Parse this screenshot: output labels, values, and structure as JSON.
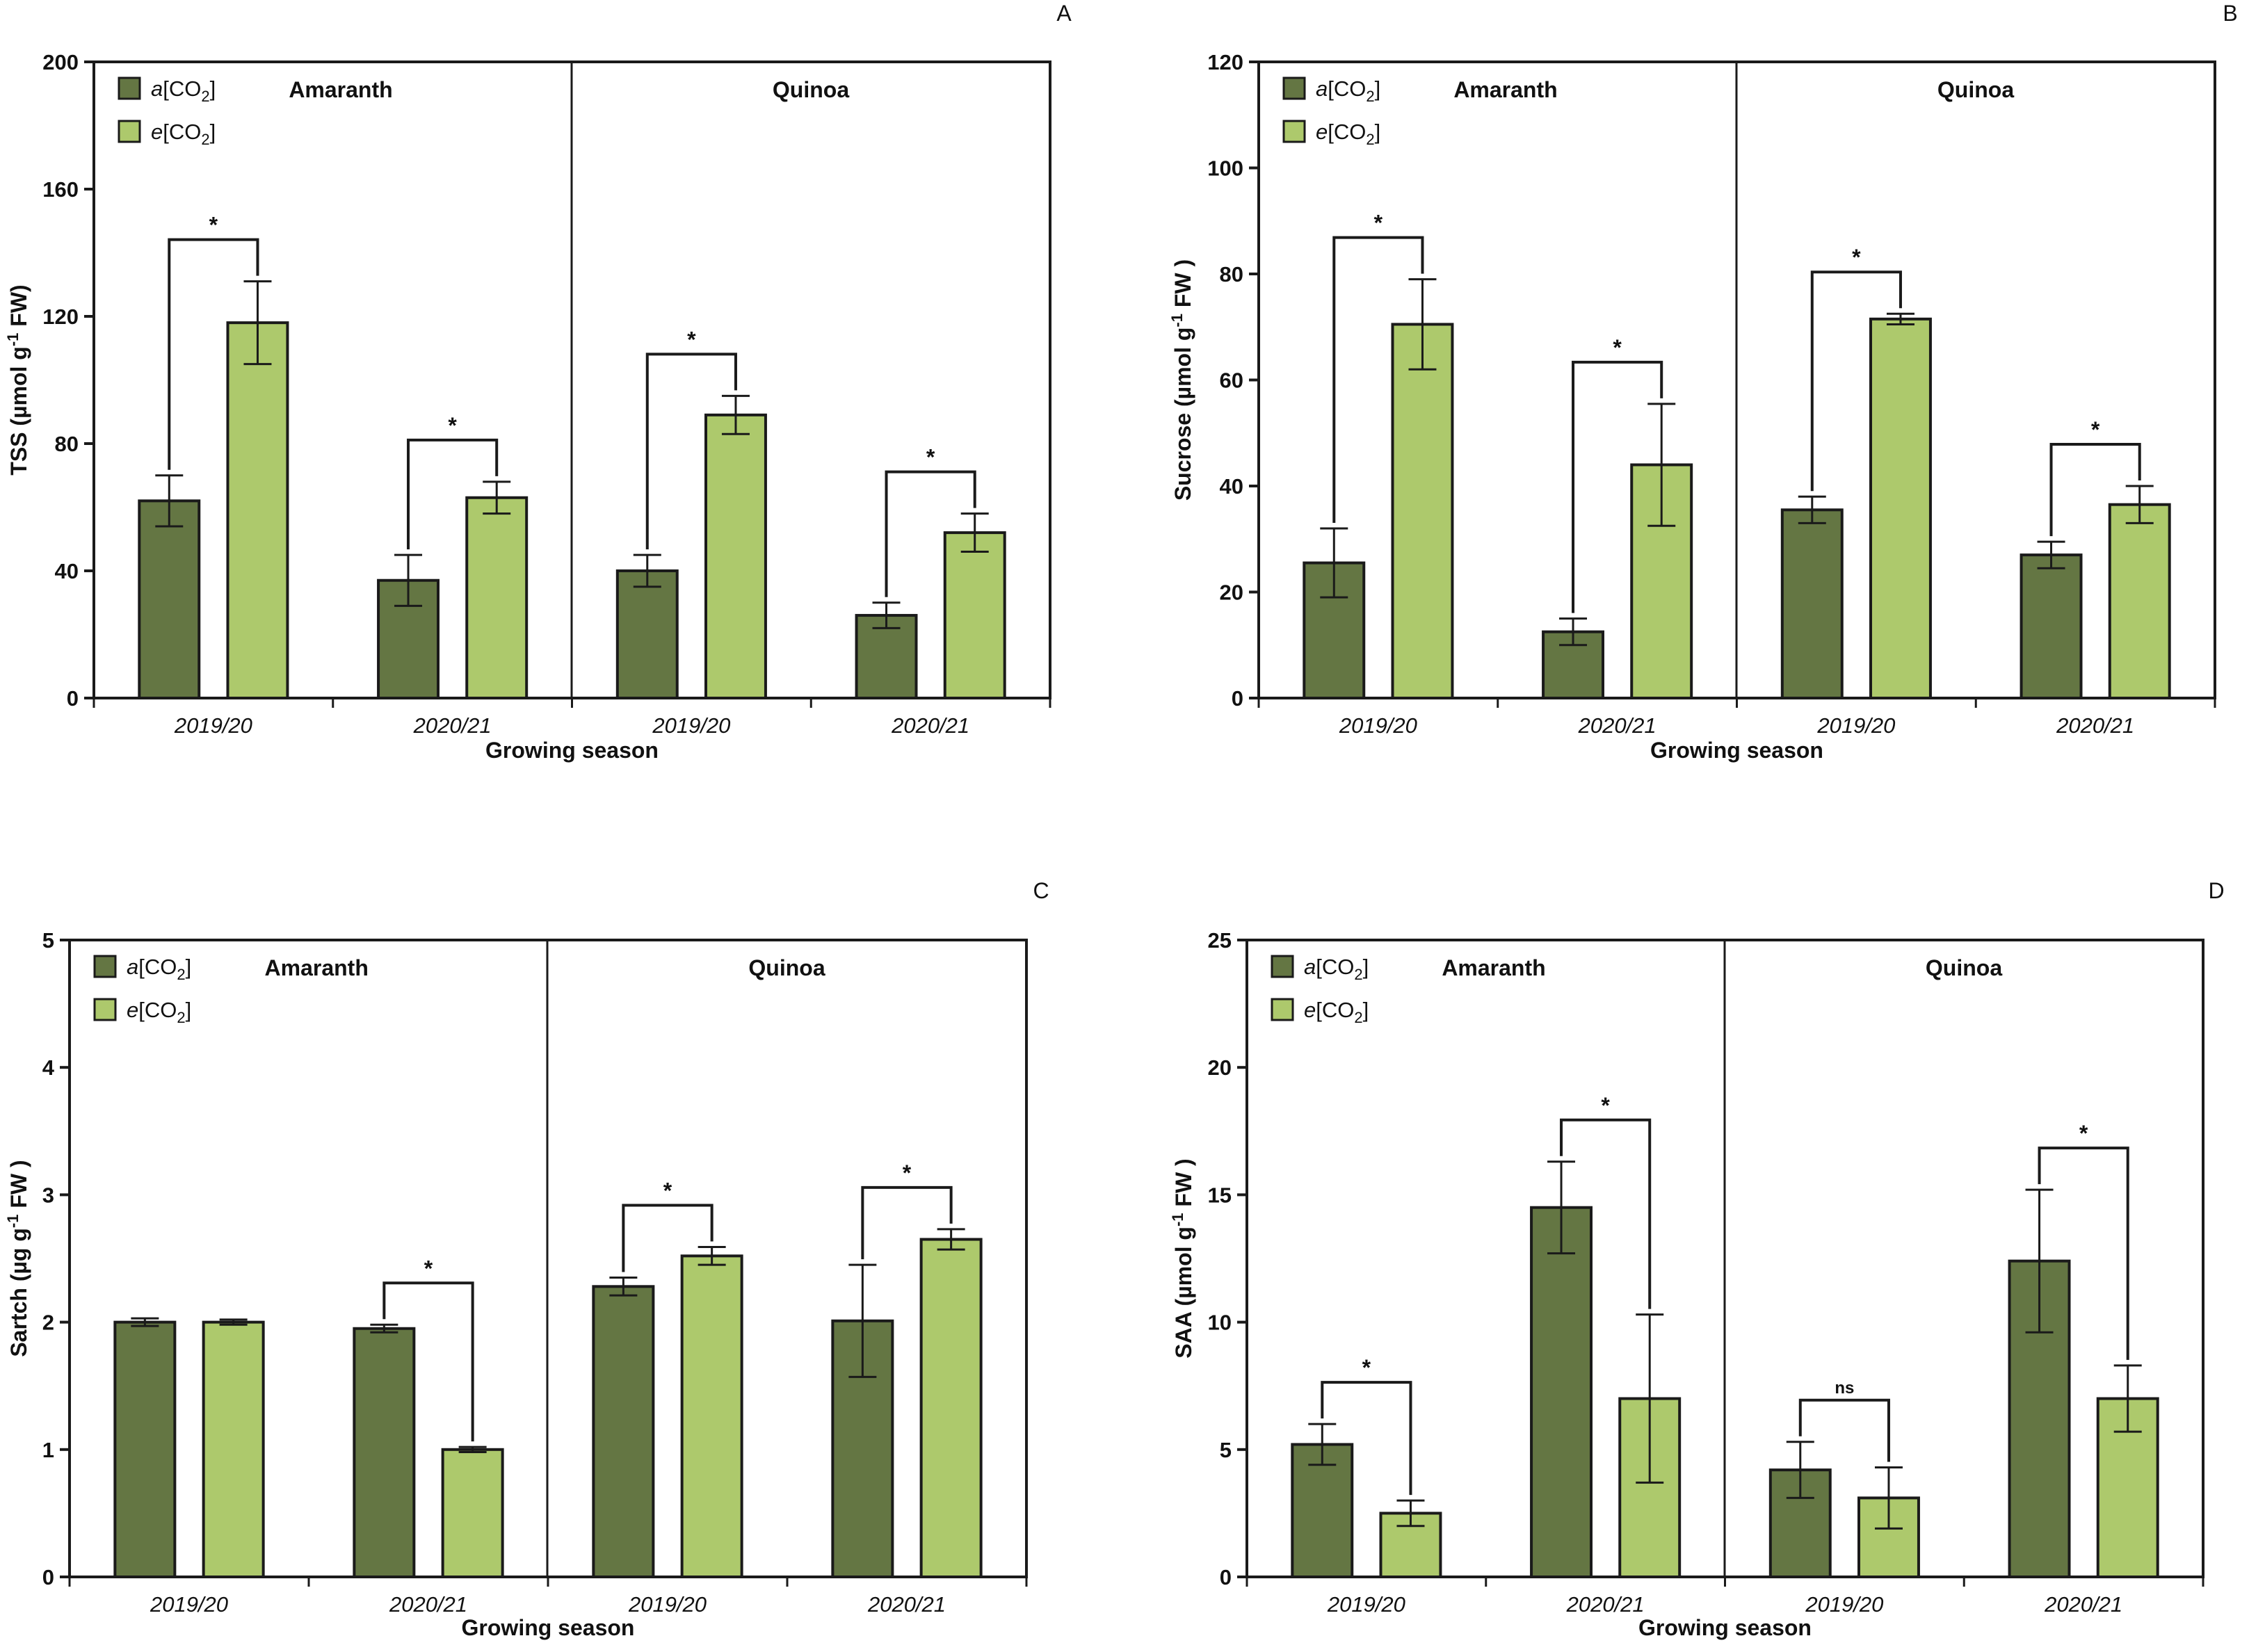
{
  "colors": {
    "ambient": "#647643",
    "elevated": "#adc96c",
    "stroke": "#1a1a1a"
  },
  "chart_data": [
    {
      "panel": "A",
      "type": "bar",
      "ylabel_main": "TSS (µmol g",
      "ylabel_sup": "-1",
      "ylabel_tail": " FW)",
      "xlabel": "Growing season",
      "ylim": [
        0,
        200
      ],
      "yticks": [
        "0",
        "40",
        "80",
        "120",
        "160",
        "200"
      ],
      "ytick_values": [
        0,
        40,
        80,
        120,
        160,
        200
      ],
      "legend": [
        {
          "italic": "a",
          "main": "[CO",
          "sub": "2",
          "close": "]"
        },
        {
          "italic": "e",
          "main": "[CO",
          "sub": "2",
          "close": "]"
        }
      ],
      "sections": [
        "Amaranth",
        "Quinoa"
      ],
      "categories": [
        "2019/20",
        "2020/21",
        "2019/20",
        "2020/21"
      ],
      "series": [
        {
          "name": "a[CO2]",
          "values": [
            62,
            37,
            40,
            26
          ],
          "errors": [
            8,
            8,
            5,
            4
          ]
        },
        {
          "name": "e[CO2]",
          "values": [
            118,
            63,
            89,
            52
          ],
          "errors": [
            13,
            5,
            6,
            6
          ]
        }
      ],
      "significance": [
        "*",
        "*",
        "*",
        "*"
      ]
    },
    {
      "panel": "B",
      "type": "bar",
      "ylabel_main": "Sucrose (µmol g",
      "ylabel_sup": "-1",
      "ylabel_tail": " FW )",
      "xlabel": "Growing season",
      "ylim": [
        0,
        120
      ],
      "yticks": [
        "0",
        "20",
        "40",
        "60",
        "80",
        "100",
        "120"
      ],
      "ytick_values": [
        0,
        20,
        40,
        60,
        80,
        100,
        120
      ],
      "legend": [
        {
          "italic": "a",
          "main": "[CO",
          "sub": "2",
          "close": "]"
        },
        {
          "italic": "e",
          "main": "[CO",
          "sub": "2",
          "close": "]"
        }
      ],
      "sections": [
        "Amaranth",
        "Quinoa"
      ],
      "categories": [
        "2019/20",
        "2020/21",
        "2019/20",
        "2020/21"
      ],
      "series": [
        {
          "name": "a[CO2]",
          "values": [
            25.5,
            12.5,
            35.5,
            27
          ],
          "errors": [
            6.5,
            2.5,
            2.5,
            2.5
          ]
        },
        {
          "name": "e[CO2]",
          "values": [
            70.5,
            44,
            71.5,
            36.5
          ],
          "errors": [
            8.5,
            11.5,
            1,
            3.5
          ]
        }
      ],
      "significance": [
        "*",
        "*",
        "*",
        "*"
      ]
    },
    {
      "panel": "C",
      "type": "bar",
      "ylabel_main": "Sartch (µg g",
      "ylabel_sup": "-1",
      "ylabel_tail": " FW )",
      "xlabel": "Growing season",
      "ylim": [
        0,
        5
      ],
      "yticks": [
        "0",
        "1",
        "2",
        "3",
        "4",
        "5"
      ],
      "ytick_values": [
        0,
        1,
        2,
        3,
        4,
        5
      ],
      "legend": [
        {
          "italic": "a",
          "main": "[CO",
          "sub": "2",
          "close": "]"
        },
        {
          "italic": "e",
          "main": "[CO",
          "sub": "2",
          "close": "]"
        }
      ],
      "sections": [
        "Amaranth",
        "Quinoa"
      ],
      "categories": [
        "2019/20",
        "2020/21",
        "2019/20",
        "2020/21"
      ],
      "series": [
        {
          "name": "a[CO2]",
          "values": [
            2.0,
            1.95,
            2.28,
            2.01
          ],
          "errors": [
            0.03,
            0.03,
            0.07,
            0.44
          ]
        },
        {
          "name": "e[CO2]",
          "values": [
            2.0,
            1.0,
            2.52,
            2.65
          ],
          "errors": [
            0.02,
            0.02,
            0.07,
            0.08
          ]
        }
      ],
      "significance": [
        null,
        "*",
        "*",
        "*"
      ]
    },
    {
      "panel": "D",
      "type": "bar",
      "ylabel_main": "SAA (µmol g",
      "ylabel_sup": "-1",
      "ylabel_tail": " FW )",
      "xlabel": "Growing season",
      "ylim": [
        0,
        25
      ],
      "yticks": [
        "0",
        "5",
        "10",
        "15",
        "20",
        "25"
      ],
      "ytick_values": [
        0,
        5,
        10,
        15,
        20,
        25
      ],
      "legend": [
        {
          "italic": "a",
          "main": "[CO",
          "sub": "2",
          "close": "]"
        },
        {
          "italic": "e",
          "main": "[CO",
          "sub": "2",
          "close": "]"
        }
      ],
      "sections": [
        "Amaranth",
        "Quinoa"
      ],
      "categories": [
        "2019/20",
        "2020/21",
        "2019/20",
        "2020/21"
      ],
      "series": [
        {
          "name": "a[CO2]",
          "values": [
            5.2,
            14.5,
            4.2,
            12.4
          ],
          "errors": [
            0.8,
            1.8,
            1.1,
            2.8
          ]
        },
        {
          "name": "e[CO2]",
          "values": [
            2.5,
            7.0,
            3.1,
            7.0
          ],
          "errors": [
            0.5,
            3.3,
            1.2,
            1.3
          ]
        }
      ],
      "significance": [
        "*",
        "*",
        "ns",
        "*"
      ]
    }
  ]
}
